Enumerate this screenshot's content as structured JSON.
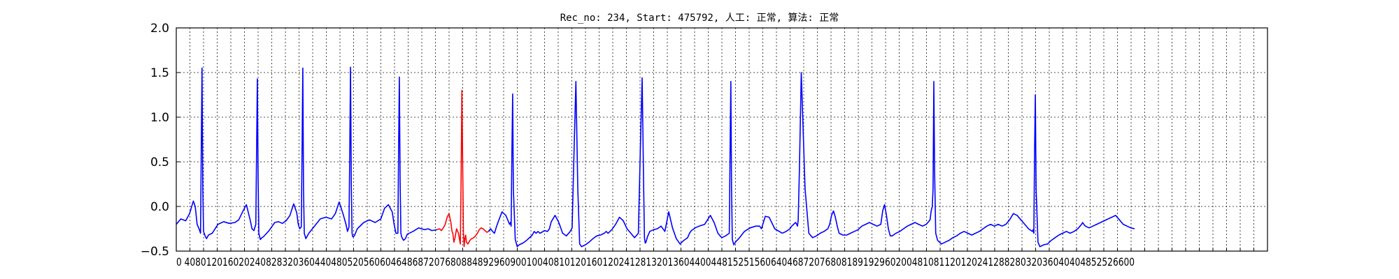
{
  "chart_data": {
    "type": "line",
    "title": "Rec_no: 234, Start: 475792, 人工: 正常, 算法: 正常",
    "xlabel": "",
    "ylabel": "",
    "xlim": [
      0,
      1600
    ],
    "ylim": [
      -0.5,
      2.0
    ],
    "grid": true,
    "yticks": [
      -0.5,
      0.0,
      0.5,
      1.0,
      1.5,
      2.0
    ],
    "ytick_labels": [
      "−0.5",
      "0.0",
      "0.5",
      "1.0",
      "1.5",
      "2.0"
    ],
    "xtick_label_text": "0 4080120160202408283203604404805205606046486872076808848929609001004081012016012024128132013604400448152515606404687207680818919296020048108112012024128828032036040404852526600",
    "series": [
      {
        "color": "#0000ff",
        "segments": [
          {
            "x": [
              0,
              12,
              25,
              35,
              45,
              50,
              55,
              60,
              64,
              66,
              68,
              70,
              72,
              76,
              80,
              85,
              95,
              110,
              125,
              140,
              155,
              165,
              175,
              185,
              195,
              200,
              205,
              210,
              212,
              214,
              216,
              218,
              222,
              226,
              230,
              245,
              260,
              270,
              280,
              290,
              300,
              310,
              318,
              322,
              326,
              330,
              332,
              334,
              336,
              338,
              342,
              346,
              350,
              365,
              380,
              395,
              410,
              420,
              430,
              440,
              448,
              452,
              456,
              458,
              460,
              462,
              464,
              466,
              470,
              474,
              478,
              495,
              510,
              525,
              540,
              550,
              560,
              570,
              575,
              580,
              585,
              587,
              589,
              591,
              593,
              595,
              600,
              605,
              610,
              625,
              640,
              655,
              665,
              675,
              688
            ],
            "y": [
              -0.2,
              -0.14,
              -0.16,
              -0.08,
              0.06,
              0.0,
              -0.2,
              -0.25,
              -0.3,
              0.6,
              1.55,
              0.2,
              -0.28,
              -0.33,
              -0.36,
              -0.32,
              -0.3,
              -0.2,
              -0.17,
              -0.19,
              -0.18,
              -0.15,
              -0.06,
              0.02,
              -0.15,
              -0.25,
              -0.27,
              -0.2,
              0.6,
              1.43,
              0.3,
              -0.3,
              -0.37,
              -0.35,
              -0.34,
              -0.27,
              -0.18,
              -0.17,
              -0.19,
              -0.16,
              -0.1,
              0.03,
              -0.07,
              -0.2,
              -0.25,
              -0.23,
              0.6,
              1.55,
              0.2,
              -0.3,
              -0.36,
              -0.33,
              -0.3,
              -0.22,
              -0.14,
              -0.12,
              -0.14,
              -0.08,
              0.05,
              -0.08,
              -0.2,
              -0.28,
              -0.23,
              0.6,
              1.56,
              0.25,
              -0.3,
              -0.34,
              -0.33,
              -0.29,
              -0.25,
              -0.18,
              -0.15,
              -0.18,
              -0.14,
              -0.02,
              0.02,
              -0.06,
              -0.2,
              -0.3,
              -0.3,
              0.7,
              1.45,
              0.3,
              -0.3,
              -0.34,
              -0.38,
              -0.36,
              -0.31,
              -0.28,
              -0.24,
              -0.26,
              -0.25,
              -0.27,
              -0.26
            ]
          },
          {
            "x": [
              824,
              830,
              835,
              840,
              845,
              850,
              860,
              870,
              880,
              882,
              884,
              886,
              888,
              890,
              895,
              900,
              905,
              915,
              925,
              935,
              940,
              945,
              950,
              955,
              960,
              965,
              972,
              980,
              985,
              990,
              1000,
              1010,
              1020,
              1030,
              1040,
              1045,
              1050,
              1055,
              1060,
              1065,
              1070,
              1080,
              1090,
              1100,
              1110,
              1120,
              1130,
              1135,
              1140,
              1145,
              1150,
              1160,
              1170,
              1180,
              1190,
              1200,
              1210,
              1220,
              1225,
              1230,
              1234,
              1236,
              1238,
              1240,
              1244,
              1248,
              1250,
              1260,
              1270,
              1280,
              1290,
              1300,
              1310,
              1320,
              1330,
              1340,
              1350,
              1355,
              1360,
              1370,
              1380,
              1395,
              1410,
              1420,
              1430,
              1440,
              1450,
              1460,
              1462,
              1464,
              1466,
              1468,
              1472,
              1476,
              1485,
              1500,
              1515,
              1530,
              1540,
              1545,
              1550,
              1555,
              1565,
              1580,
              1600
            ],
            "y": [
              -0.28,
              -0.25,
              -0.28,
              -0.3,
              -0.23,
              -0.17,
              -0.06,
              -0.1,
              -0.2,
              -0.18,
              -0.22,
              0.6,
              1.26,
              0.2,
              -0.37,
              -0.45,
              -0.43,
              -0.41,
              -0.38,
              -0.34,
              -0.32,
              -0.28,
              -0.3,
              -0.28,
              -0.3,
              -0.29,
              -0.27,
              -0.28,
              -0.25,
              -0.17,
              -0.1,
              -0.18,
              -0.3,
              -0.33,
              -0.28,
              -0.24,
              0.6,
              1.4,
              0.2,
              -0.42,
              -0.45,
              -0.43,
              -0.4,
              -0.36,
              -0.33,
              -0.32,
              -0.3,
              -0.28,
              -0.3,
              -0.28,
              -0.26,
              -0.2,
              -0.12,
              -0.16,
              -0.25,
              -0.3,
              -0.35,
              -0.3,
              0.6,
              1.44,
              0.2,
              -0.35,
              -0.41,
              -0.4,
              -0.34,
              -0.3,
              -0.28,
              -0.26,
              -0.25,
              -0.22,
              -0.28,
              -0.06,
              -0.24,
              -0.36,
              -0.42,
              -0.38,
              -0.35,
              -0.3,
              -0.27,
              -0.24,
              -0.22,
              -0.2,
              -0.1,
              -0.18,
              -0.3,
              -0.35,
              -0.33,
              -0.3,
              0.6,
              1.4,
              0.2,
              -0.37,
              -0.43,
              -0.4,
              -0.36,
              -0.28,
              -0.24,
              -0.22,
              -0.22,
              -0.25,
              -0.18,
              -0.11,
              -0.12,
              -0.25,
              -0.3
            ]
          },
          {
            "x": [
              1600,
              1610,
              1620,
              1625,
              1630,
              1635,
              1638,
              1640,
              1642,
              1645,
              1650,
              1660,
              1670,
              1680,
              1690,
              1700,
              1710,
              1720,
              1725,
              1730,
              1735,
              1740,
              1745,
              1750,
              1760,
              1770,
              1780,
              1790,
              1800,
              1810,
              1820,
              1830,
              1840,
              1850,
              1860,
              1865,
              1870,
              1875,
              1880,
              1885,
              1890,
              1900,
              1910,
              1920,
              1930,
              1940,
              1950,
              1960,
              1970,
              1980,
              1990,
              1993,
              1996,
              1998,
              2000,
              2002,
              2005,
              2010,
              2020,
              2030,
              2040,
              2050,
              2060,
              2070,
              2080,
              2090,
              2100,
              2110,
              2120,
              2130,
              2140,
              2150,
              2160,
              2170,
              2180,
              2190,
              2200,
              2210,
              2220,
              2230,
              2240,
              2250,
              2260,
              2262,
              2264,
              2266,
              2268,
              2270,
              2275,
              2280,
              2290,
              2300,
              2310,
              2320,
              2330,
              2340,
              2350,
              2360,
              2370,
              2380,
              2386,
              2390,
              2393,
              2396,
              2400,
              2410,
              2420,
              2430,
              2440,
              2450,
              2460,
              2470,
              2480,
              2490,
              2500,
              2510,
              2520,
              2530
            ],
            "y": [
              -0.3,
              -0.28,
              -0.25,
              -0.22,
              -0.2,
              -0.18,
              -0.2,
              -0.22,
              -0.15,
              0.4,
              1.5,
              0.2,
              -0.3,
              -0.35,
              -0.33,
              -0.3,
              -0.28,
              -0.25,
              -0.2,
              -0.1,
              -0.05,
              -0.12,
              -0.22,
              -0.3,
              -0.32,
              -0.32,
              -0.3,
              -0.28,
              -0.26,
              -0.22,
              -0.2,
              -0.18,
              -0.2,
              -0.22,
              -0.2,
              -0.05,
              0.02,
              -0.1,
              -0.25,
              -0.33,
              -0.33,
              -0.3,
              -0.28,
              -0.25,
              -0.22,
              -0.2,
              -0.18,
              -0.2,
              -0.22,
              -0.2,
              -0.15,
              -0.05,
              0.0,
              0.2,
              1.4,
              0.4,
              -0.3,
              -0.38,
              -0.42,
              -0.4,
              -0.38,
              -0.35,
              -0.33,
              -0.3,
              -0.28,
              -0.3,
              -0.32,
              -0.3,
              -0.28,
              -0.25,
              -0.22,
              -0.2,
              -0.22,
              -0.2,
              -0.22,
              -0.2,
              -0.15,
              -0.08,
              -0.1,
              -0.15,
              -0.2,
              -0.25,
              -0.28,
              -0.26,
              -0.3,
              0.6,
              1.25,
              0.2,
              -0.4,
              -0.45,
              -0.43,
              -0.42,
              -0.38,
              -0.35,
              -0.32,
              -0.3,
              -0.28,
              -0.3,
              -0.28,
              -0.25,
              -0.22,
              -0.2,
              -0.18,
              -0.2,
              -0.22,
              -0.24,
              -0.22,
              -0.2,
              -0.18,
              -0.16,
              -0.14,
              -0.12,
              -0.1,
              -0.15,
              -0.2,
              -0.22,
              -0.24,
              -0.25
            ]
          }
        ]
      },
      {
        "color": "#ff0000",
        "segments": [
          {
            "x": [
              688,
              695,
              700,
              705,
              710,
              715,
              720,
              725,
              728,
              730,
              733,
              736,
              740,
              745,
              750,
              752,
              754,
              756,
              758,
              760,
              762,
              764,
              766,
              770,
              775,
              780,
              785,
              790,
              795,
              800,
              805,
              810,
              815,
              820,
              824
            ],
            "y": [
              -0.26,
              -0.25,
              -0.27,
              -0.24,
              -0.2,
              -0.12,
              -0.08,
              -0.18,
              -0.28,
              -0.3,
              -0.4,
              -0.35,
              -0.25,
              -0.3,
              -0.42,
              0.3,
              1.3,
              0.5,
              -0.3,
              -0.45,
              -0.36,
              -0.32,
              -0.4,
              -0.42,
              -0.38,
              -0.36,
              -0.35,
              -0.33,
              -0.3,
              -0.26,
              -0.24,
              -0.25,
              -0.27,
              -0.29,
              -0.28
            ]
          }
        ]
      }
    ]
  }
}
